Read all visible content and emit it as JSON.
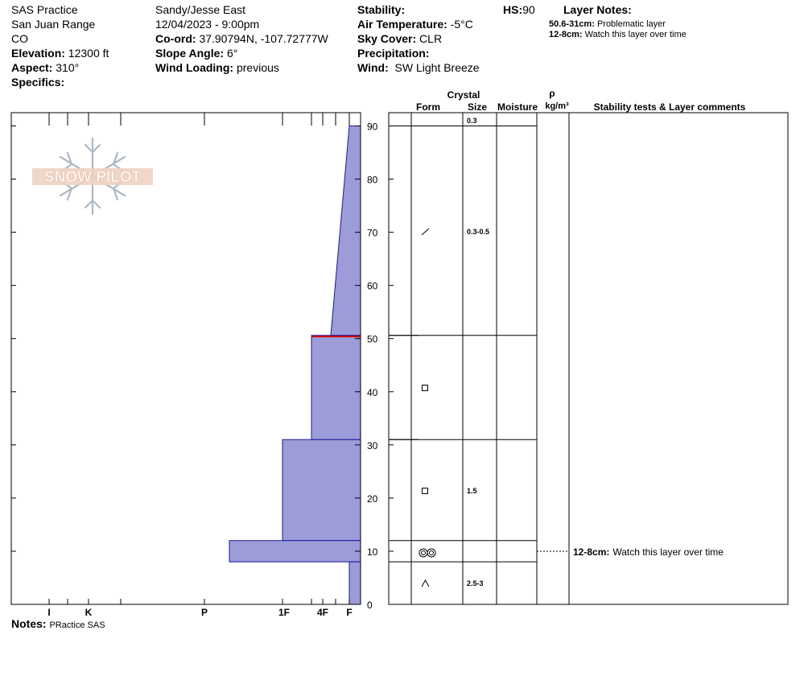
{
  "header": {
    "site": "SAS Practice",
    "range": "San Juan Range",
    "state": "CO",
    "elevation_label": "Elevation:",
    "elevation": "12300 ft",
    "aspect_label": "Aspect:",
    "aspect": "310°",
    "specifics_label": "Specifics:",
    "observers": "Sandy/Jesse East",
    "datetime": "12/04/2023 - 9:00pm",
    "coord_label": "Co-ord:",
    "coord": "37.90794N, -107.72777W",
    "slope_label": "Slope Angle:",
    "slope": "6°",
    "wind_loading_label": "Wind Loading:",
    "wind_loading": "previous",
    "stability_label": "Stability:",
    "air_temp_label": "Air Temperature:",
    "air_temp": "-5°C",
    "sky_label": "Sky Cover:",
    "sky": "CLR",
    "precip_label": "Precipitation:",
    "wind_label": "Wind:",
    "wind": "SW Light Breeze",
    "hs_label": "HS:",
    "hs": "90",
    "layer_notes_title": "Layer Notes:",
    "layer_notes": [
      {
        "range": "50.6-31cm:",
        "text": "Problematic layer"
      },
      {
        "range": "12-8cm:",
        "text": "Watch this layer over time"
      }
    ]
  },
  "logo": {
    "text": "SNOW PILOT"
  },
  "columns": {
    "crystal": "Crystal",
    "form": "Form",
    "size": "Size",
    "moisture": "Moisture",
    "rho": "ρ",
    "density_unit": "kg/m³",
    "stability": "Stability tests & Layer comments"
  },
  "chart_data": {
    "type": "snow-profile",
    "y_axis": {
      "min": 0,
      "max": 90,
      "ticks": [
        0,
        10,
        20,
        30,
        40,
        50,
        60,
        70,
        80,
        90
      ],
      "unit": "cm"
    },
    "hardness_labels": [
      "I",
      "K",
      "P",
      "1F",
      "4F",
      "F"
    ],
    "hardness_scale_note": "F at 0 (right edge), 4F≈1, 1F≈2, P≈3, K≈6, I≈7 in scale steps leftward",
    "fill_color": "#9c9cd8",
    "outline_color": "#1a1a9c",
    "marker_color": "#cc0000",
    "layers": [
      {
        "top": 90,
        "bottom": 50.6,
        "hardness_top": "F",
        "hardness_bottom": "4F-",
        "form": "precipitation-particles",
        "size": "0.3-0.5"
      },
      {
        "top": 50.6,
        "bottom": 31,
        "hardness": "4F",
        "form": "faceted",
        "size": ""
      },
      {
        "top": 31,
        "bottom": 12,
        "hardness": "1F",
        "form": "faceted",
        "size": "1.5"
      },
      {
        "top": 12,
        "bottom": 8,
        "hardness": "P-",
        "form": "rounded-polycrystals",
        "size": ""
      },
      {
        "top": 8,
        "bottom": 0,
        "hardness": "F",
        "form": "depth-hoar",
        "size": "2.5-3"
      }
    ],
    "surface_layer": {
      "size": "0.3"
    },
    "problem_layer_line": 50.4,
    "comments": [
      {
        "depth": 10,
        "range": "12-8cm:",
        "text": "Watch this layer over time"
      }
    ]
  },
  "notes": {
    "label": "Notes:",
    "text": "PRactice SAS"
  }
}
